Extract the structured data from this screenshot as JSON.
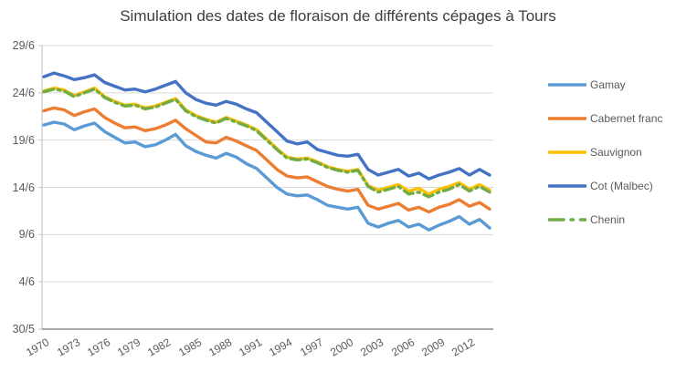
{
  "chart_data": {
    "type": "line",
    "title": "Simulation des dates de floraison de différents cépages à Tours",
    "xlabel": "",
    "ylabel": "",
    "grid": "horizontal",
    "legend_position": "right",
    "y_tick_labels": [
      "29/6",
      "24/6",
      "19/6",
      "14/6",
      "9/6",
      "4/6",
      "30/5"
    ],
    "y_tick_days_after_30_5": [
      30,
      25,
      20,
      15,
      10,
      5,
      0
    ],
    "ylim_days_after_30_5": [
      0,
      30
    ],
    "x_tick_labels": [
      "1970",
      "1973",
      "1976",
      "1979",
      "1982",
      "1985",
      "1988",
      "1991",
      "1994",
      "1997",
      "2000",
      "2003",
      "2006",
      "2009",
      "2012"
    ],
    "x_tick_years": [
      1970,
      1973,
      1976,
      1979,
      1982,
      1985,
      1988,
      1991,
      1994,
      1997,
      2000,
      2003,
      2006,
      2009,
      2012
    ],
    "years": [
      1970,
      1971,
      1972,
      1973,
      1974,
      1975,
      1976,
      1977,
      1978,
      1979,
      1980,
      1981,
      1982,
      1983,
      1984,
      1985,
      1986,
      1987,
      1988,
      1989,
      1990,
      1991,
      1992,
      1993,
      1994,
      1995,
      1996,
      1997,
      1998,
      1999,
      2000,
      2001,
      2002,
      2003,
      2004,
      2005,
      2006,
      2007,
      2008,
      2009,
      2010,
      2011,
      2012,
      2013,
      2014
    ],
    "value_unit": "days after 30/5 (flowering date)",
    "series": [
      {
        "name": "Gamay",
        "color": "#5B9BD5",
        "style": "solid",
        "values": [
          21.6,
          21.9,
          21.7,
          21.1,
          21.5,
          21.8,
          20.9,
          20.3,
          19.7,
          19.8,
          19.3,
          19.5,
          20.0,
          20.6,
          19.4,
          18.8,
          18.4,
          18.1,
          18.6,
          18.2,
          17.5,
          17.0,
          16.0,
          15.0,
          14.3,
          14.1,
          14.2,
          13.7,
          13.1,
          12.9,
          12.7,
          12.9,
          11.2,
          10.8,
          11.2,
          11.5,
          10.8,
          11.1,
          10.5,
          11.0,
          11.4,
          11.9,
          11.1,
          11.6,
          10.7
        ]
      },
      {
        "name": "Cabernet franc",
        "color": "#ED7D31",
        "style": "solid",
        "values": [
          23.1,
          23.4,
          23.2,
          22.6,
          23.0,
          23.3,
          22.4,
          21.8,
          21.3,
          21.4,
          21.0,
          21.2,
          21.6,
          22.1,
          21.2,
          20.5,
          19.8,
          19.7,
          20.3,
          19.9,
          19.4,
          18.9,
          17.9,
          16.9,
          16.2,
          16.0,
          16.1,
          15.6,
          15.1,
          14.8,
          14.6,
          14.8,
          13.1,
          12.7,
          13.0,
          13.3,
          12.6,
          12.9,
          12.4,
          12.9,
          13.2,
          13.7,
          13.0,
          13.4,
          12.7
        ]
      },
      {
        "name": "Sauvignon",
        "color": "#FFC000",
        "style": "solid",
        "values": [
          25.2,
          25.5,
          25.3,
          24.7,
          25.1,
          25.5,
          24.6,
          24.1,
          23.7,
          23.8,
          23.4,
          23.6,
          24.0,
          24.4,
          23.2,
          22.6,
          22.2,
          21.9,
          22.4,
          22.0,
          21.6,
          21.1,
          20.1,
          19.1,
          18.2,
          18.0,
          18.1,
          17.7,
          17.2,
          16.9,
          16.7,
          16.9,
          15.2,
          14.7,
          15.0,
          15.3,
          14.6,
          14.9,
          14.3,
          14.8,
          15.1,
          15.5,
          14.8,
          15.3,
          14.7
        ]
      },
      {
        "name": "Cot (Malbec)",
        "color": "#4472C4",
        "style": "solid",
        "values": [
          26.7,
          27.1,
          26.8,
          26.4,
          26.6,
          26.9,
          26.1,
          25.7,
          25.3,
          25.4,
          25.1,
          25.4,
          25.8,
          26.2,
          25.0,
          24.3,
          23.9,
          23.7,
          24.1,
          23.8,
          23.3,
          22.9,
          21.9,
          20.9,
          19.9,
          19.6,
          19.8,
          19.0,
          18.7,
          18.4,
          18.3,
          18.5,
          16.9,
          16.3,
          16.6,
          16.9,
          16.2,
          16.5,
          15.9,
          16.3,
          16.6,
          17.0,
          16.3,
          16.9,
          16.3
        ]
      },
      {
        "name": "Chenin",
        "color": "#70AD47",
        "style": "long-dash-dot",
        "values": [
          25.1,
          25.4,
          25.2,
          24.6,
          25.0,
          25.4,
          24.5,
          24.0,
          23.6,
          23.7,
          23.3,
          23.5,
          23.9,
          24.3,
          23.1,
          22.5,
          22.1,
          21.8,
          22.3,
          21.9,
          21.5,
          21.0,
          20.0,
          19.0,
          18.1,
          17.9,
          18.0,
          17.6,
          17.1,
          16.8,
          16.6,
          16.8,
          15.1,
          14.5,
          14.8,
          15.1,
          14.3,
          14.5,
          14.0,
          14.5,
          14.8,
          15.3,
          14.6,
          15.1,
          14.5
        ]
      }
    ],
    "colors": {
      "gridline": "#D9D9D9",
      "axis_left": "#C9C9C9",
      "axis_bottom": "#8C8C8C",
      "tick_label": "#595959",
      "title_text": "#3d3d3d"
    }
  }
}
